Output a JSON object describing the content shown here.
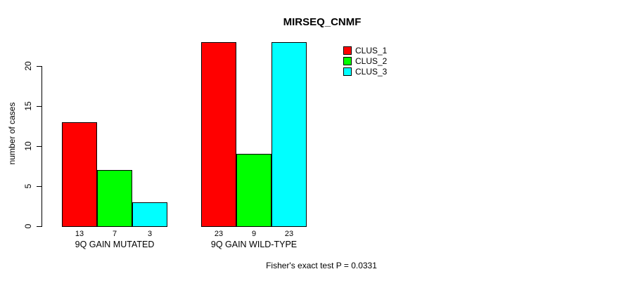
{
  "chart_data": {
    "type": "bar",
    "title": "MIRSEQ_CNMF",
    "ylabel": "number of cases",
    "xlabel": "",
    "categories": [
      "9Q GAIN MUTATED",
      "9Q GAIN WILD-TYPE"
    ],
    "series": [
      {
        "name": "CLUS_1",
        "color": "#ff0000",
        "values": [
          13,
          23
        ]
      },
      {
        "name": "CLUS_2",
        "color": "#00ff00",
        "values": [
          7,
          9
        ]
      },
      {
        "name": "CLUS_3",
        "color": "#00ffff",
        "values": [
          3,
          23
        ]
      }
    ],
    "bar_value_labels": [
      [
        "13",
        "7",
        "3"
      ],
      [
        "23",
        "9",
        "23"
      ]
    ],
    "yticks": [
      "0",
      "5",
      "10",
      "15",
      "20"
    ],
    "ylim": [
      0,
      23
    ],
    "grid": false,
    "legend_position": "top-right",
    "legend_entries": [
      "CLUS_1",
      "CLUS_2",
      "CLUS_3"
    ],
    "annotation": "Fisher's exact test P = 0.0331",
    "axis_color": "#000000",
    "background_color": "#ffffff"
  }
}
